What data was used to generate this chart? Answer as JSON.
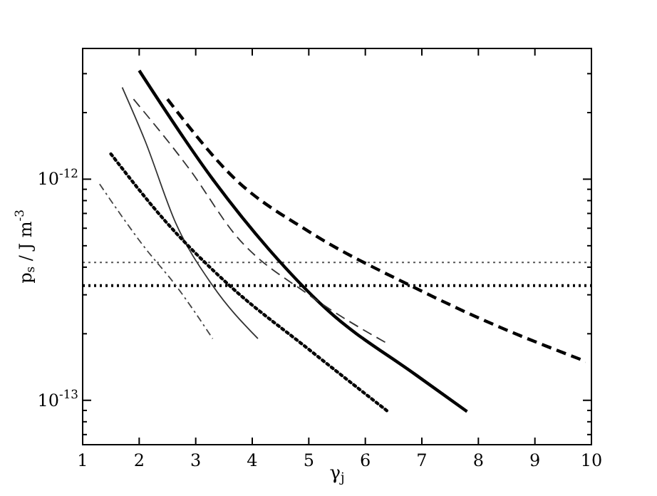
{
  "chart_data": {
    "type": "line",
    "xlabel": "γ$_{j}$",
    "ylabel": "p$_{s}$ / J m$^{-3}$",
    "log": "y",
    "grid": false,
    "xlim": [
      1,
      10
    ],
    "xticks": [
      1,
      2,
      3,
      4,
      5,
      6,
      7,
      8,
      9,
      10
    ],
    "ylim": [
      6.3e-14,
      3.9e-12
    ],
    "yticks": [
      {
        "value": 7e-14,
        "label": null
      },
      {
        "value": 8e-14,
        "label": null
      },
      {
        "value": 9e-14,
        "label": null
      },
      {
        "value": 1e-13,
        "label": "10$^{-13}$"
      },
      {
        "value": 2e-13,
        "label": null
      },
      {
        "value": 3e-13,
        "label": null
      },
      {
        "value": 4e-13,
        "label": null
      },
      {
        "value": 5e-13,
        "label": null
      },
      {
        "value": 6e-13,
        "label": null
      },
      {
        "value": 7e-13,
        "label": null
      },
      {
        "value": 8e-13,
        "label": null
      },
      {
        "value": 9e-13,
        "label": null
      },
      {
        "value": 1e-12,
        "label": "10$^{-12}$"
      },
      {
        "value": 2e-12,
        "label": null
      },
      {
        "value": 3e-12,
        "label": null
      }
    ],
    "series": [
      {
        "color": "#000000",
        "line_style": "solid",
        "x": [
          2.0,
          3.3,
          4.3,
          5.3,
          6.9,
          7.8
        ],
        "values": [
          3.1e-12,
          1e-12,
          4.8e-13,
          2.6e-13,
          1.3e-13,
          8.9e-14
        ]
      },
      {
        "color": "#000000",
        "line_style": "dashed",
        "x": [
          2.5,
          3.7,
          5.0,
          6.8,
          8.1,
          9.9
        ],
        "values": [
          2.3e-12,
          1e-12,
          5.8e-13,
          3.3e-13,
          2.3e-13,
          1.5e-13
        ]
      },
      {
        "color": "#333333",
        "line_style": "dashed",
        "x": [
          1.9,
          2.9,
          3.7,
          5.0,
          6.4
        ],
        "values": [
          2.3e-12,
          1.1e-12,
          5.6e-13,
          3e-13,
          1.8e-13
        ]
      },
      {
        "color": "#333333",
        "line_style": "solid",
        "x": [
          1.7,
          2.1,
          2.65,
          3.3,
          4.1
        ],
        "values": [
          2.6e-12,
          1.5e-12,
          6.3e-13,
          3.3e-13,
          1.9e-13
        ]
      },
      {
        "color": "#000000",
        "line_style": "dotted",
        "x": [
          1.5,
          2.5,
          3.6,
          5.0,
          6.4
        ],
        "values": [
          1.3e-12,
          6.3e-13,
          3.3e-13,
          1.7e-13,
          8.9e-14
        ]
      },
      {
        "color": "#444444",
        "line_style": "dashdot",
        "x": [
          1.3,
          2.1,
          2.65,
          3.3
        ],
        "values": [
          9.5e-13,
          4.9e-13,
          3.3e-13,
          1.9e-13
        ]
      }
    ],
    "ref_lines": [
      {
        "axis": "y",
        "value": 4.2e-13,
        "color": "#555555",
        "line_style": "dotted"
      },
      {
        "axis": "y",
        "value": 3.3e-13,
        "color": "#000000",
        "line_style": "dotted"
      }
    ]
  }
}
